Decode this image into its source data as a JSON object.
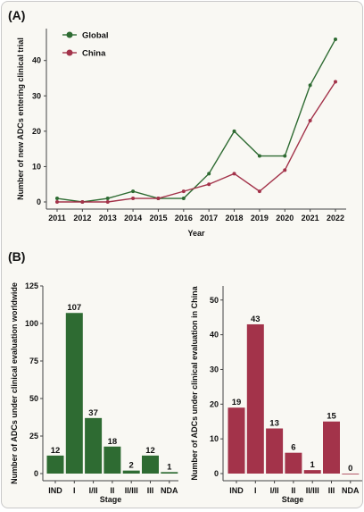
{
  "figure": {
    "panel_a_label": "(A)",
    "panel_b_label": "(B)"
  },
  "colors": {
    "global": "#2e6b32",
    "china": "#a3334a"
  },
  "chart_data": [
    {
      "type": "line",
      "panel": "(A)",
      "xlabel": "Year",
      "ylabel": "Number of new ADCs entering clinical trial",
      "x": [
        "2011",
        "2012",
        "2013",
        "2014",
        "2015",
        "2016",
        "2017",
        "2018",
        "2019",
        "2020",
        "2021",
        "2022"
      ],
      "yticks": [
        0,
        10,
        20,
        30,
        40
      ],
      "ylim": [
        0,
        47
      ],
      "legend_position": "top-left",
      "series": [
        {
          "name": "Global",
          "color": "#2e6b32",
          "values": [
            1,
            0,
            1,
            3,
            1,
            1,
            8,
            20,
            13,
            13,
            33,
            46
          ]
        },
        {
          "name": "China",
          "color": "#a3334a",
          "values": [
            0,
            0,
            0,
            1,
            1,
            3,
            5,
            8,
            3,
            9,
            23,
            34
          ]
        }
      ]
    },
    {
      "type": "bar",
      "panel": "(B) left",
      "xlabel": "Stage",
      "ylabel": "Number of ADCs under clinical evaluation worldwide",
      "categories": [
        "IND",
        "I",
        "I/II",
        "II",
        "II/III",
        "III",
        "NDA"
      ],
      "values": [
        12,
        107,
        37,
        18,
        2,
        12,
        1
      ],
      "data_labels": [
        "12",
        "107",
        "37",
        "18",
        "2",
        "12",
        "1"
      ],
      "yticks": [
        0,
        25,
        50,
        75,
        100,
        125
      ],
      "ylim": [
        0,
        125
      ],
      "color": "#2e6b32"
    },
    {
      "type": "bar",
      "panel": "(B) right",
      "xlabel": "Stage",
      "ylabel": "Number of ADCs under clinical evaluation in China",
      "categories": [
        "IND",
        "I",
        "I/II",
        "II",
        "II/III",
        "III",
        "NDA"
      ],
      "values": [
        19,
        43,
        13,
        6,
        1,
        15,
        0
      ],
      "data_labels": [
        "19",
        "43",
        "13",
        "6",
        "1",
        "15",
        "0"
      ],
      "yticks": [
        0,
        10,
        20,
        30,
        40,
        50
      ],
      "ylim": [
        0,
        52
      ],
      "color": "#a3334a"
    }
  ]
}
